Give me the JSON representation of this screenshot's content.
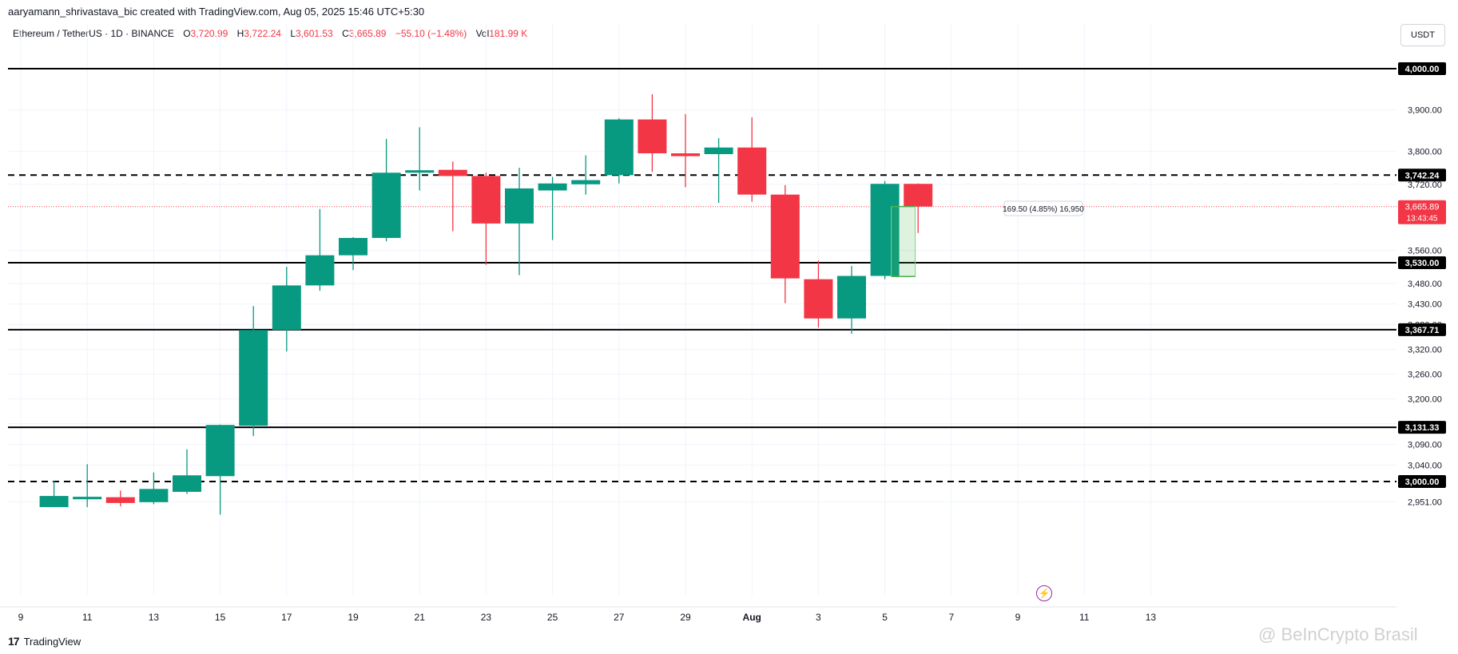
{
  "header": {
    "credit": "aaryamann_shrivastava_bic created with TradingView.com, Aug 05, 2025 15:46 UTC+5:30",
    "symbol": "Ethereum / TetherUS · 1D · BINANCE",
    "o_label": "O",
    "o_value": "3,720.99",
    "h_label": "H",
    "h_value": "3,722.24",
    "l_label": "L",
    "l_value": "3,601.53",
    "c_label": "C",
    "c_value": "3,665.89",
    "change": "−55.10 (−1.48%)",
    "vol_label": "Vol",
    "vol_value": "181.99 K",
    "currency_button": "USDT"
  },
  "footer": {
    "logo_mark": "17",
    "logo_text": "TradingView",
    "watermark": "@ BeInCrypto Brasil",
    "flash_icon": "lightning-icon"
  },
  "chart_data": {
    "type": "candlestick",
    "colors": {
      "up": "#089981",
      "down": "#f23645",
      "background": "#ffffff",
      "grid": "#f0f3fa",
      "text": "#131722"
    },
    "x_axis_ticks": [
      "9",
      "11",
      "13",
      "15",
      "17",
      "19",
      "21",
      "23",
      "25",
      "27",
      "29",
      "Aug",
      "3",
      "5",
      "7",
      "9",
      "11",
      "13"
    ],
    "y_axis_ticks": [
      "3,900.00",
      "3,800.00",
      "3,720.00",
      "3,560.00",
      "3,480.00",
      "3,430.00",
      "3,380.00",
      "3,320.00",
      "3,260.00",
      "3,200.00",
      "3,140.00",
      "3,090.00",
      "3,040.00",
      "2,951.00"
    ],
    "candles": [
      {
        "date": "Jul 10",
        "o": 2938,
        "h": 3002,
        "l": 2938,
        "c": 2965
      },
      {
        "date": "Jul 11",
        "o": 2957,
        "h": 3042,
        "l": 2938,
        "c": 2963
      },
      {
        "date": "Jul 12",
        "o": 2962,
        "h": 2978,
        "l": 2940,
        "c": 2948
      },
      {
        "date": "Jul 13",
        "o": 2950,
        "h": 3022,
        "l": 2945,
        "c": 2982
      },
      {
        "date": "Jul 14",
        "o": 2975,
        "h": 3078,
        "l": 2970,
        "c": 3015
      },
      {
        "date": "Jul 15",
        "o": 3013,
        "h": 3138,
        "l": 2920,
        "c": 3137
      },
      {
        "date": "Jul 16",
        "o": 3135,
        "h": 3425,
        "l": 3110,
        "c": 3367
      },
      {
        "date": "Jul 17",
        "o": 3367,
        "h": 3520,
        "l": 3315,
        "c": 3475
      },
      {
        "date": "Jul 18",
        "o": 3475,
        "h": 3660,
        "l": 3462,
        "c": 3548
      },
      {
        "date": "Jul 19",
        "o": 3548,
        "h": 3592,
        "l": 3512,
        "c": 3590
      },
      {
        "date": "Jul 20",
        "o": 3590,
        "h": 3830,
        "l": 3582,
        "c": 3748
      },
      {
        "date": "Jul 21",
        "o": 3748,
        "h": 3858,
        "l": 3705,
        "c": 3754
      },
      {
        "date": "Jul 22",
        "o": 3755,
        "h": 3775,
        "l": 3606,
        "c": 3740
      },
      {
        "date": "Jul 23",
        "o": 3740,
        "h": 3748,
        "l": 3525,
        "c": 3625
      },
      {
        "date": "Jul 24",
        "o": 3625,
        "h": 3760,
        "l": 3500,
        "c": 3710
      },
      {
        "date": "Jul 25",
        "o": 3705,
        "h": 3738,
        "l": 3585,
        "c": 3722
      },
      {
        "date": "Jul 26",
        "o": 3720,
        "h": 3790,
        "l": 3695,
        "c": 3730
      },
      {
        "date": "Jul 27",
        "o": 3742,
        "h": 3880,
        "l": 3722,
        "c": 3877
      },
      {
        "date": "Jul 28",
        "o": 3877,
        "h": 3938,
        "l": 3750,
        "c": 3795
      },
      {
        "date": "Jul 29",
        "o": 3795,
        "h": 3890,
        "l": 3713,
        "c": 3788
      },
      {
        "date": "Jul 30",
        "o": 3793,
        "h": 3832,
        "l": 3675,
        "c": 3809
      },
      {
        "date": "Jul 31",
        "o": 3809,
        "h": 3882,
        "l": 3678,
        "c": 3695
      },
      {
        "date": "Aug 1",
        "o": 3695,
        "h": 3718,
        "l": 3432,
        "c": 3492
      },
      {
        "date": "Aug 2",
        "o": 3490,
        "h": 3535,
        "l": 3373,
        "c": 3395
      },
      {
        "date": "Aug 3",
        "o": 3395,
        "h": 3522,
        "l": 3358,
        "c": 3498
      },
      {
        "date": "Aug 4",
        "o": 3498,
        "h": 3728,
        "l": 3490,
        "c": 3721
      },
      {
        "date": "Aug 5",
        "o": 3721,
        "h": 3722,
        "l": 3602,
        "c": 3666
      }
    ],
    "horizontal_levels": [
      {
        "value": 4000.0,
        "label": "4,000.00",
        "style": "solid"
      },
      {
        "value": 3742.24,
        "label": "3,742.24",
        "style": "dashed"
      },
      {
        "value": 3530.0,
        "label": "3,530.00",
        "style": "solid"
      },
      {
        "value": 3367.71,
        "label": "3,367.71",
        "style": "solid"
      },
      {
        "value": 3131.33,
        "label": "3,131.33",
        "style": "solid"
      },
      {
        "value": 3000.0,
        "label": "3,000.00",
        "style": "dashed"
      }
    ],
    "last_price": {
      "value": 3665.89,
      "label": "3,665.89",
      "countdown": "13:43:45"
    },
    "measure": {
      "from": 3496.5,
      "to": 3666,
      "label": "169.50 (4.85%) 16,950"
    }
  }
}
